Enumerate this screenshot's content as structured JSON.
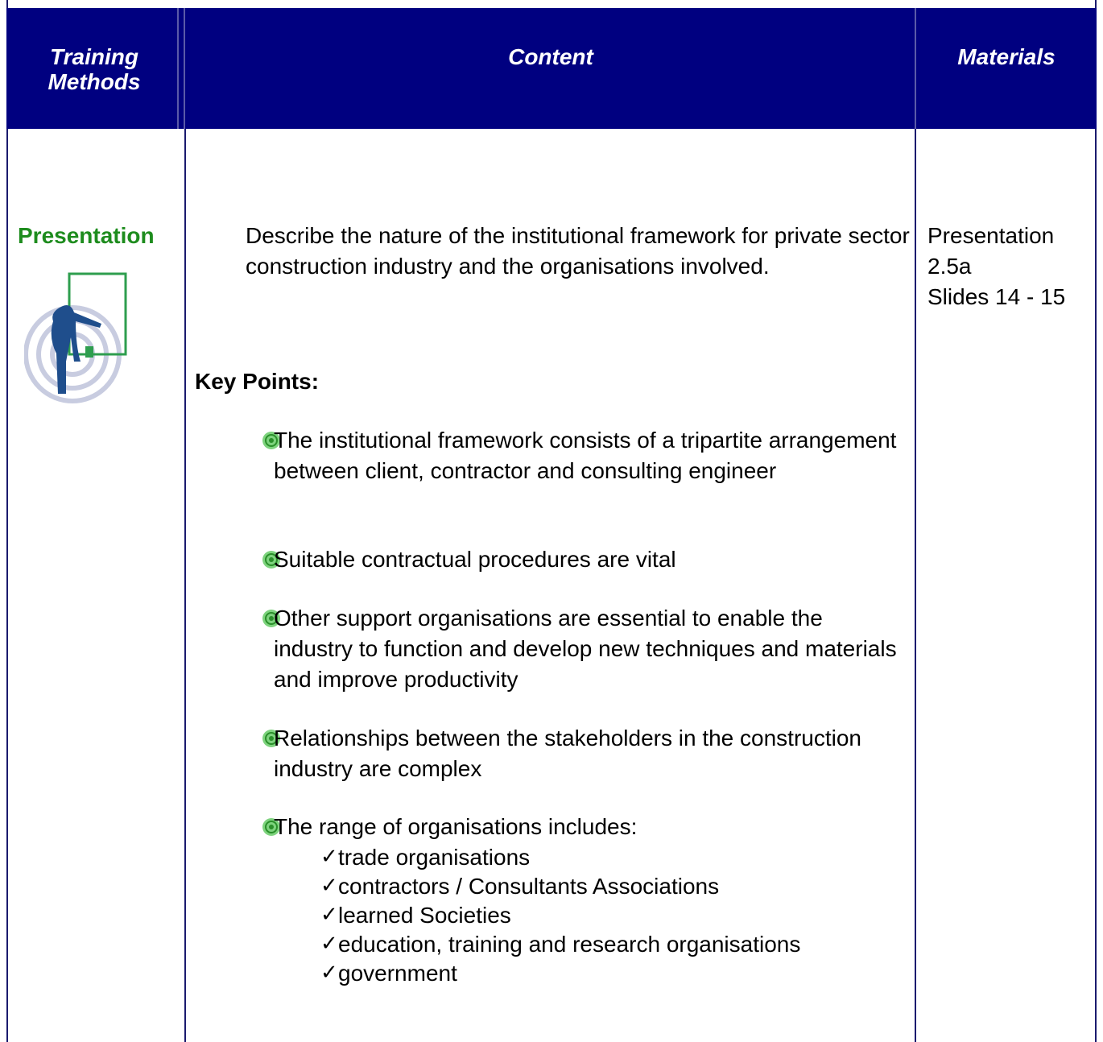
{
  "table": {
    "header": [
      "Training Methods",
      "Content",
      "Materials"
    ],
    "method": "Presentation",
    "content": {
      "intro": "Describe the nature of the institutional framework for private sector construction industry and the organisations involved.",
      "key_points_title": "Key Points:",
      "points": [
        "The institutional framework consists of a tripartite arrangement between client, contractor and consulting engineer",
        "Suitable contractual procedures are vital",
        "Other support organisations are essential to enable the industry to function and develop new techniques and materials and improve productivity",
        "Relationships between the stakeholders in the construction industry are complex",
        "The range of organisations includes:"
      ],
      "sub_points": [
        "trade organisations",
        "contractors / Consultants Associations",
        "learned Societies",
        "education, training and research organisations",
        "government"
      ]
    },
    "materials": [
      "Presentation",
      "2.5a",
      "Slides 14 - 15"
    ]
  }
}
